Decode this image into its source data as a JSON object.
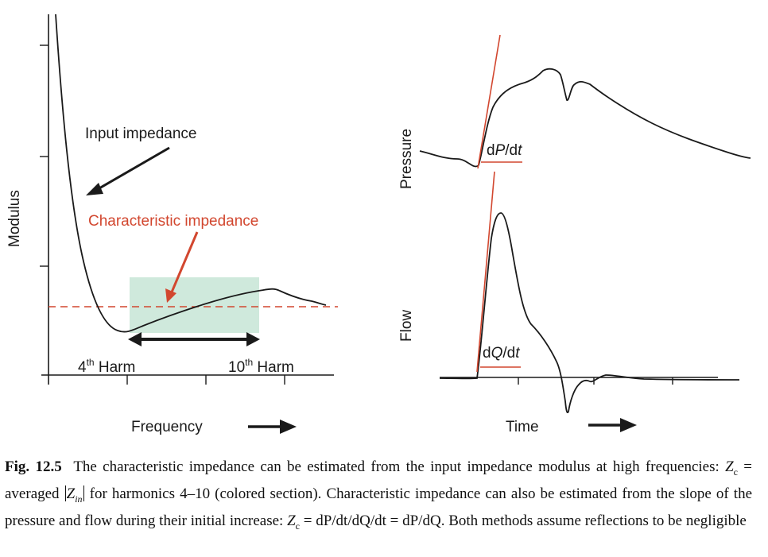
{
  "left_panel": {
    "y_axis_label": "Modulus",
    "x_axis_label": "Frequency",
    "input_impedance_label": "Input impedance",
    "characteristic_impedance_label": "Characteristic impedance",
    "harm_start": {
      "base": "4",
      "sup": "th",
      "rest": " Harm"
    },
    "harm_end": {
      "base": "10",
      "sup": "th",
      "rest": " Harm"
    },
    "colors": {
      "curve": "#1a1a1a",
      "char_line": "#d2472f",
      "band": "#cfe9dc",
      "arrow": "#d2472f"
    }
  },
  "right_panel": {
    "pressure_label": "Pressure",
    "flow_label": "Flow",
    "x_axis_label": "Time",
    "dp_label": {
      "d1": "d",
      "var1": "P",
      "sep": "/d",
      "var2": "t"
    },
    "dq_label": {
      "d1": "d",
      "var1": "Q",
      "sep": "/d",
      "var2": "t"
    },
    "colors": {
      "curve": "#1a1a1a",
      "slope": "#d2472f"
    }
  },
  "caption": {
    "fig_label": "Fig. 12.5",
    "text_1": "The characteristic impedance can be estimated from the input impedance modulus at high frequencies: ",
    "zc_var": "Z",
    "zc_sub": "c",
    "text_2": " = averaged ",
    "zin_var": "Z",
    "zin_sub": "in",
    "text_3": " for harmonics 4–10 (colored section). Characteristic impedance can also be estimated from the slope of the pressure and flow during their initial increase: ",
    "eq_zc_var": "Z",
    "eq_zc_sub": "c",
    "eq_text": " = dP/dt/dQ/dt = dP/dQ",
    "text_4": ". Both methods assume reflections to be negligible"
  }
}
